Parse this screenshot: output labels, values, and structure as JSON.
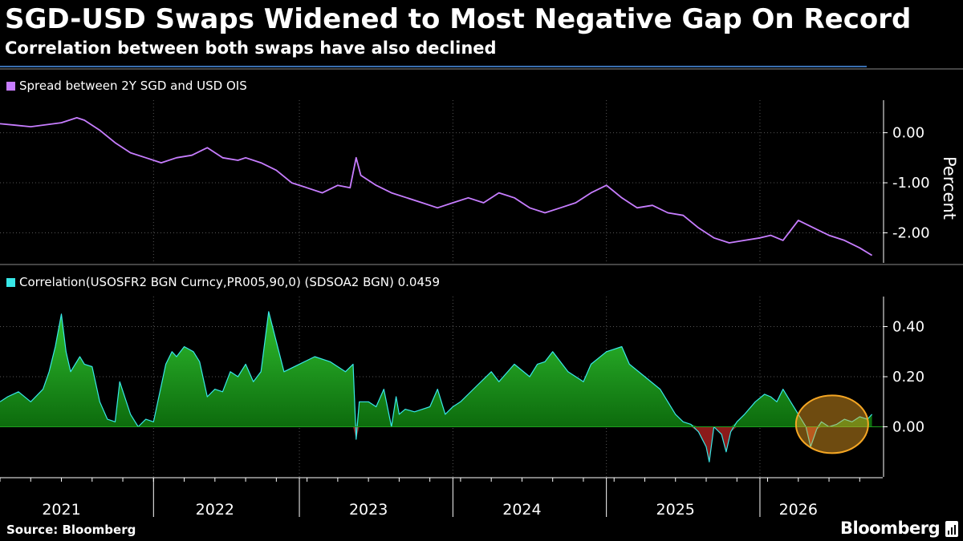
{
  "title": "SGD-USD Swaps Widened to Most Negative Gap On Record",
  "subtitle": "Correlation between both swaps have also declined",
  "source": "Source: Bloomberg",
  "brand": "Bloomberg",
  "colors": {
    "background": "#000000",
    "spread_line": "#c77dff",
    "corr_line": "#38e8e8",
    "corr_fill_positive": "#1f9e1f",
    "corr_fill_negative": "#8b1a1a",
    "highlight_circle": "#f5a623",
    "axis": "#ffffff"
  },
  "chart_data": [
    {
      "type": "line",
      "legend": "Spread between 2Y SGD and USD OIS",
      "ylabel": "Percent",
      "ylim": [
        -2.6,
        0.65
      ],
      "yticks": [
        "0.00",
        "-1.00",
        "-2.00"
      ],
      "ytick_values": [
        0,
        -1,
        -2
      ],
      "xlim": [
        2020.6,
        2026.35
      ],
      "series": [
        {
          "x": [
            2020.6,
            2020.7,
            2020.8,
            2020.9,
            2021.0,
            2021.1,
            2021.15,
            2021.25,
            2021.35,
            2021.45,
            2021.55,
            2021.65,
            2021.75,
            2021.85,
            2021.95,
            2022.05,
            2022.15,
            2022.2,
            2022.3,
            2022.4,
            2022.5,
            2022.6,
            2022.7,
            2022.8,
            2022.88,
            2022.92,
            2022.95,
            2023.05,
            2023.15,
            2023.25,
            2023.35,
            2023.45,
            2023.55,
            2023.65,
            2023.75,
            2023.85,
            2023.95,
            2024.05,
            2024.15,
            2024.25,
            2024.35,
            2024.45,
            2024.55,
            2024.65,
            2024.75,
            2024.85,
            2024.95,
            2025.05,
            2025.15,
            2025.25,
            2025.35,
            2025.45,
            2025.55,
            2025.62,
            2025.7,
            2025.8,
            2025.9,
            2026.0,
            2026.1,
            2026.2,
            2026.28
          ],
          "y": [
            0.18,
            0.15,
            0.12,
            0.16,
            0.2,
            0.3,
            0.25,
            0.05,
            -0.2,
            -0.4,
            -0.5,
            -0.6,
            -0.5,
            -0.45,
            -0.3,
            -0.5,
            -0.55,
            -0.5,
            -0.6,
            -0.75,
            -1.0,
            -1.1,
            -1.2,
            -1.05,
            -1.1,
            -0.5,
            -0.85,
            -1.05,
            -1.2,
            -1.3,
            -1.4,
            -1.5,
            -1.4,
            -1.3,
            -1.4,
            -1.2,
            -1.3,
            -1.5,
            -1.6,
            -1.5,
            -1.4,
            -1.2,
            -1.05,
            -1.3,
            -1.5,
            -1.45,
            -1.6,
            -1.65,
            -1.9,
            -2.1,
            -2.2,
            -2.15,
            -2.1,
            -2.05,
            -2.15,
            -1.75,
            -1.9,
            -2.05,
            -2.15,
            -2.3,
            -2.45
          ]
        }
      ]
    },
    {
      "type": "area",
      "legend": "Correlation(USOSFR2 BGN Curncy,PR005,90,0) (SDSOA2 BGN) 0.0459",
      "ylim": [
        -0.2,
        0.52
      ],
      "yticks": [
        "0.40",
        "0.20",
        "0.00"
      ],
      "ytick_values": [
        0.4,
        0.2,
        0
      ],
      "xlim": [
        2020.6,
        2026.35
      ],
      "series": [
        {
          "x": [
            2020.6,
            2020.65,
            2020.72,
            2020.8,
            2020.88,
            2020.92,
            2020.96,
            2021.0,
            2021.03,
            2021.06,
            2021.09,
            2021.12,
            2021.15,
            2021.2,
            2021.25,
            2021.3,
            2021.35,
            2021.38,
            2021.45,
            2021.5,
            2021.55,
            2021.6,
            2021.68,
            2021.72,
            2021.75,
            2021.8,
            2021.86,
            2021.9,
            2021.95,
            2022.0,
            2022.05,
            2022.1,
            2022.15,
            2022.2,
            2022.25,
            2022.3,
            2022.35,
            2022.45,
            2022.55,
            2022.65,
            2022.75,
            2022.85,
            2022.9,
            2022.92,
            2022.94,
            2023.0,
            2023.05,
            2023.1,
            2023.15,
            2023.18,
            2023.2,
            2023.24,
            2023.3,
            2023.4,
            2023.45,
            2023.5,
            2023.55,
            2023.6,
            2023.7,
            2023.8,
            2023.85,
            2023.95,
            2024.05,
            2024.1,
            2024.15,
            2024.2,
            2024.3,
            2024.4,
            2024.45,
            2024.55,
            2024.65,
            2024.7,
            2024.8,
            2024.9,
            2024.95,
            2025.0,
            2025.05,
            2025.1,
            2025.15,
            2025.2,
            2025.22,
            2025.25,
            2025.3,
            2025.33,
            2025.36,
            2025.4,
            2025.45,
            2025.52,
            2025.58,
            2025.62,
            2025.66,
            2025.7,
            2025.75,
            2025.8,
            2025.85,
            2025.88,
            2025.92,
            2025.95,
            2026.0,
            2026.05,
            2026.1,
            2026.15,
            2026.2,
            2026.25,
            2026.28
          ],
          "y": [
            0.1,
            0.12,
            0.14,
            0.1,
            0.15,
            0.22,
            0.32,
            0.45,
            0.3,
            0.22,
            0.25,
            0.28,
            0.25,
            0.24,
            0.1,
            0.03,
            0.02,
            0.18,
            0.05,
            0.0,
            0.03,
            0.02,
            0.25,
            0.3,
            0.28,
            0.32,
            0.3,
            0.26,
            0.12,
            0.15,
            0.14,
            0.22,
            0.2,
            0.25,
            0.18,
            0.22,
            0.46,
            0.22,
            0.25,
            0.28,
            0.26,
            0.22,
            0.25,
            -0.05,
            0.1,
            0.1,
            0.08,
            0.15,
            0.0,
            0.12,
            0.05,
            0.07,
            0.06,
            0.08,
            0.15,
            0.05,
            0.08,
            0.1,
            0.16,
            0.22,
            0.18,
            0.25,
            0.2,
            0.25,
            0.26,
            0.3,
            0.22,
            0.18,
            0.25,
            0.3,
            0.32,
            0.25,
            0.2,
            0.15,
            0.1,
            0.05,
            0.02,
            0.01,
            -0.02,
            -0.08,
            -0.14,
            0.0,
            -0.03,
            -0.1,
            -0.02,
            0.02,
            0.05,
            0.1,
            0.13,
            0.12,
            0.1,
            0.15,
            0.1,
            0.05,
            0.0,
            -0.08,
            -0.01,
            0.02,
            0.0,
            0.01,
            0.03,
            0.02,
            0.04,
            0.03,
            0.05
          ]
        }
      ],
      "annotation": "circle highlighting latest readings (2026)"
    }
  ],
  "x_axis": {
    "tick_labels": [
      "2021",
      "2022",
      "2023",
      "2024",
      "2025",
      "2026"
    ],
    "tick_label_positions": [
      2021.0,
      2022.0,
      2023.0,
      2024.0,
      2025.0,
      2025.8
    ],
    "year_boundaries": [
      2021.6,
      2022.55,
      2023.55,
      2024.55,
      2025.55
    ]
  }
}
